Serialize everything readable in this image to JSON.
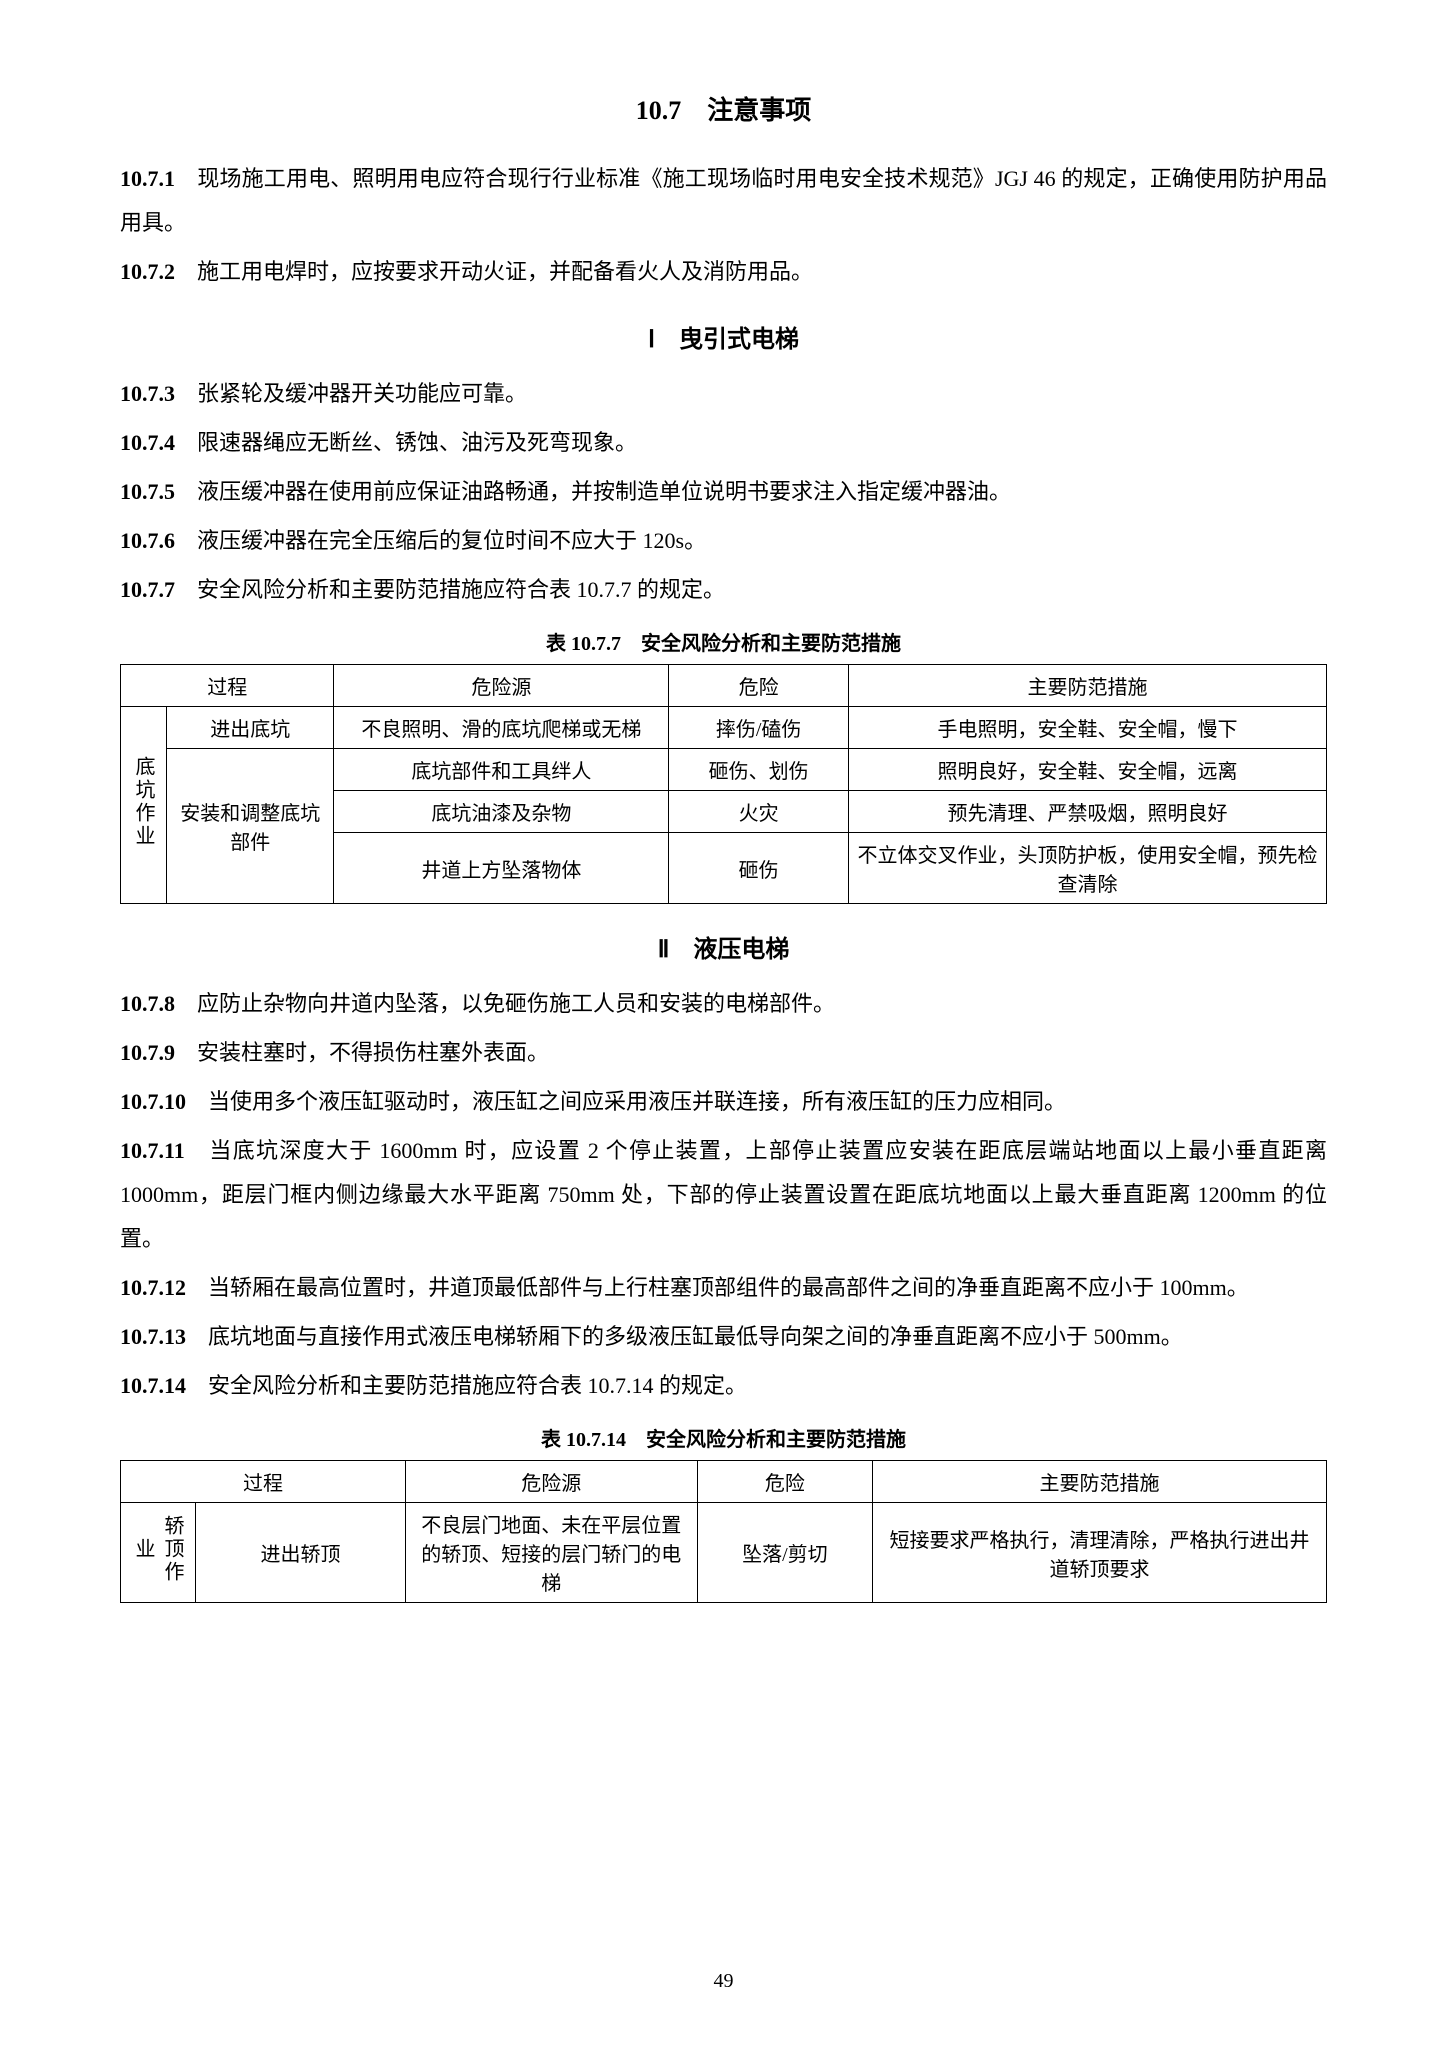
{
  "section_title": "10.7　注意事项",
  "page_number": "49",
  "paragraphs": {
    "p1_num": "10.7.1",
    "p1_text": "　现场施工用电、照明用电应符合现行行业标准《施工现场临时用电安全技术规范》JGJ 46 的规定，正确使用防护用品用具。",
    "p2_num": "10.7.2",
    "p2_text": "　施工用电焊时，应按要求开动火证，并配备看火人及消防用品。",
    "subI_title": "Ⅰ　曳引式电梯",
    "p3_num": "10.7.3",
    "p3_text": "　张紧轮及缓冲器开关功能应可靠。",
    "p4_num": "10.7.4",
    "p4_text": "　限速器绳应无断丝、锈蚀、油污及死弯现象。",
    "p5_num": "10.7.5",
    "p5_text": "　液压缓冲器在使用前应保证油路畅通，并按制造单位说明书要求注入指定缓冲器油。",
    "p6_num": "10.7.6",
    "p6_text": "　液压缓冲器在完全压缩后的复位时间不应大于 120s。",
    "p7_num": "10.7.7",
    "p7_text": "　安全风险分析和主要防范措施应符合表 10.7.7 的规定。",
    "subII_title": "Ⅱ　液压电梯",
    "p8_num": "10.7.8",
    "p8_text": "　应防止杂物向井道内坠落，以免砸伤施工人员和安装的电梯部件。",
    "p9_num": "10.7.9",
    "p9_text": "　安装柱塞时，不得损伤柱塞外表面。",
    "p10_num": "10.7.10",
    "p10_text": "　当使用多个液压缸驱动时，液压缸之间应采用液压并联连接，所有液压缸的压力应相同。",
    "p11_num": "10.7.11",
    "p11_text": "　当底坑深度大于 1600mm 时，应设置 2 个停止装置，上部停止装置应安装在距底层端站地面以上最小垂直距离 1000mm，距层门框内侧边缘最大水平距离 750mm 处，下部的停止装置设置在距底坑地面以上最大垂直距离 1200mm 的位置。",
    "p12_num": "10.7.12",
    "p12_text": "　当轿厢在最高位置时，井道顶最低部件与上行柱塞顶部组件的最高部件之间的净垂直距离不应小于 100mm。",
    "p13_num": "10.7.13",
    "p13_text": "　底坑地面与直接作用式液压电梯轿厢下的多级液压缸最低导向架之间的净垂直距离不应小于 500mm。",
    "p14_num": "10.7.14",
    "p14_text": "　安全风险分析和主要防范措施应符合表 10.7.14 的规定。"
  },
  "table1": {
    "caption": "表 10.7.7　安全风险分析和主要防范措施",
    "headers": [
      "过程",
      "危险源",
      "危险",
      "主要防范措施"
    ],
    "group_label": "底坑作业",
    "rows": [
      {
        "proc": "进出底坑",
        "hazard": "不良照明、滑的底坑爬梯或无梯",
        "danger": "摔伤/磕伤",
        "measure": "手电照明，安全鞋、安全帽，慢下"
      },
      {
        "proc": "安装和调整底坑部件",
        "hazard": "底坑部件和工具绊人",
        "danger": "砸伤、划伤",
        "measure": "照明良好，安全鞋、安全帽，远离"
      },
      {
        "hazard": "底坑油漆及杂物",
        "danger": "火灾",
        "measure": "预先清理、严禁吸烟，照明良好"
      },
      {
        "hazard": "井道上方坠落物体",
        "danger": "砸伤",
        "measure": "不立体交叉作业，头顶防护板，使用安全帽，预先检查清除"
      }
    ]
  },
  "table2": {
    "caption": "表 10.7.14　安全风险分析和主要防范措施",
    "headers": [
      "过程",
      "危险源",
      "危险",
      "主要防范措施"
    ],
    "group_label": "轿顶作业",
    "rows": [
      {
        "proc": "进出轿顶",
        "hazard": "不良层门地面、未在平层位置的轿顶、短接的层门轿门的电梯",
        "danger": "坠落/剪切",
        "measure": "短接要求严格执行，清理清除，严格执行进出井道轿顶要求"
      }
    ]
  }
}
